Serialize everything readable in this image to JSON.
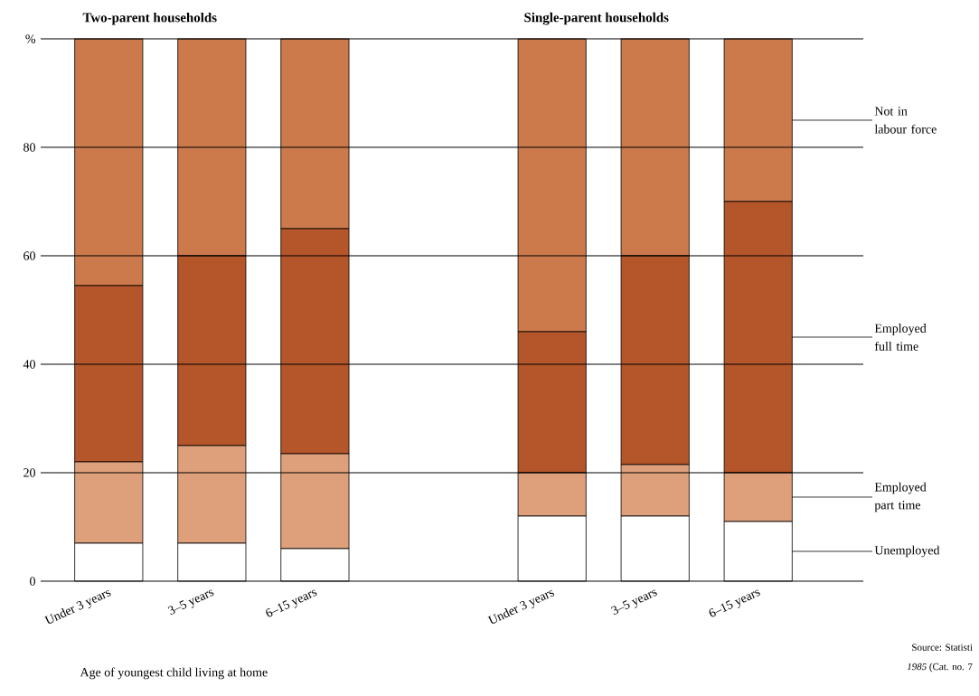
{
  "chart_data": [
    {
      "type": "bar",
      "stacked": true,
      "title": "Two-parent households",
      "xlabel": "Age of youngest child living at home",
      "categories": [
        "Under 3 years",
        "3–5 years",
        "6–15 years"
      ],
      "series": [
        {
          "color": "#ffffff",
          "values": [
            7,
            7,
            6
          ]
        },
        {
          "color": "#dea07a",
          "values": [
            15,
            18,
            17.5
          ]
        },
        {
          "color": "#b5552a",
          "values": [
            32.5,
            35,
            41.5
          ]
        },
        {
          "color": "#cc7a4c",
          "values": [
            45.5,
            40,
            35
          ]
        }
      ],
      "ylim": [
        0,
        100
      ],
      "yticks": [
        0,
        20,
        40,
        60,
        80,
        {
          "value": 100,
          "label": "%"
        }
      ],
      "grid": "y"
    },
    {
      "type": "bar",
      "stacked": true,
      "title": "Single-parent households",
      "categories": [
        "Under 3 years",
        "3–5 years",
        "6–15 years"
      ],
      "series": [
        {
          "name": "Unemployed",
          "color": "#ffffff",
          "values": [
            12,
            12,
            11
          ]
        },
        {
          "name": "Employed part time",
          "color": "#dea07a",
          "values": [
            8,
            9.5,
            9
          ]
        },
        {
          "name": "Employed full time",
          "color": "#b5552a",
          "values": [
            26,
            38.5,
            50
          ]
        },
        {
          "name": "Not in labour force",
          "color": "#cc7a4c",
          "values": [
            54,
            40,
            30
          ]
        }
      ],
      "ylim": [
        0,
        100
      ],
      "yticks": [
        0,
        20,
        40,
        60,
        80,
        100
      ],
      "grid": "y",
      "tick_labels": "x",
      "annotations": [
        "Source:  Statisti",
        "*1985* (Cat. no. 7"
      ]
    }
  ]
}
